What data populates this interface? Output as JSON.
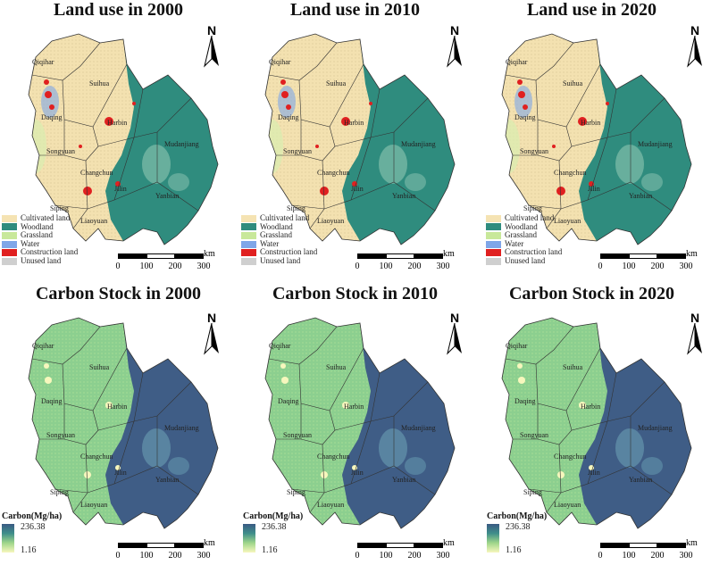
{
  "land_use_titles": [
    "Land use in 2000",
    "Land use in 2010",
    "Land use in 2020"
  ],
  "carbon_titles": [
    "Carbon Stock in 2000",
    "Carbon Stock in 2010",
    "Carbon Stock in 2020"
  ],
  "north_symbol": "N",
  "city_labels": {
    "qiqihar": "Qiqihar",
    "suihua": "Suihua",
    "daqing": "Daqing",
    "harbin": "Harbin",
    "mudanjiang": "Mudanjiang",
    "songyuan": "Songyuan",
    "changchun": "Changchun",
    "jilin": "Jilin",
    "yanbian": "Yanbian",
    "siping": "Siping",
    "liaoyuan": "Liaoyuan"
  },
  "land_legend": [
    {
      "label": "Cultivated land",
      "color": "#f5e3b3"
    },
    {
      "label": "Woodland",
      "color": "#2f8c7e"
    },
    {
      "label": "Grassland",
      "color": "#c8e89a"
    },
    {
      "label": "Water",
      "color": "#7fa6e8"
    },
    {
      "label": "Construction land",
      "color": "#e02020"
    },
    {
      "label": "Unused land",
      "color": "#cfcfcf"
    }
  ],
  "scale_bar": {
    "unit": "km",
    "ticks": [
      "0",
      "100",
      "200",
      "300"
    ]
  },
  "carbon_legend": {
    "title": "Carbon(Mg/ha)",
    "max": "236.38",
    "min": "1.16"
  },
  "colors": {
    "cultivated": "#f5e3b3",
    "woodland": "#2f8c7e",
    "carbon_low": "#8fd08f",
    "carbon_high": "#3a5a84"
  }
}
